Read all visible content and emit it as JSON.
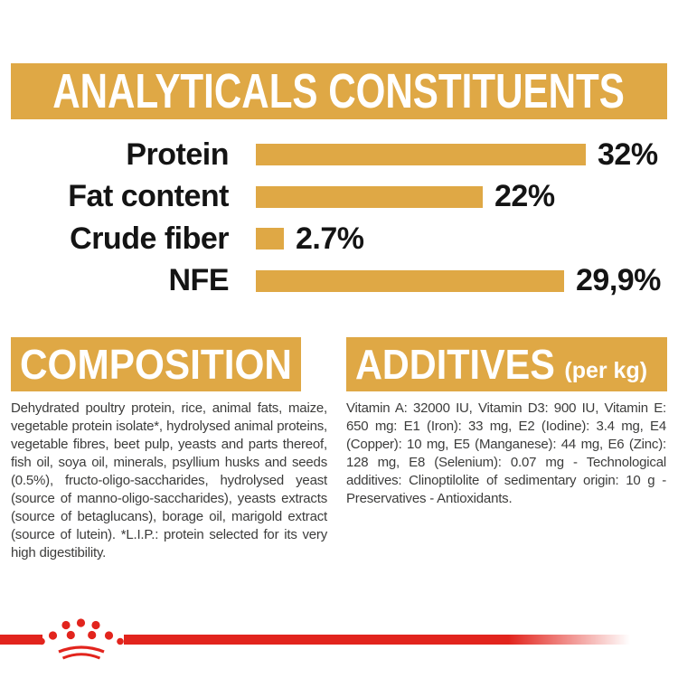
{
  "header": {
    "title": "ANALYTICALS CONSTITUENTS"
  },
  "chart_data": {
    "type": "bar",
    "orientation": "horizontal",
    "categories": [
      "Protein",
      "Fat content",
      "Crude fiber",
      "NFE"
    ],
    "values": [
      32,
      22,
      2.7,
      29.9
    ],
    "value_labels": [
      "32%",
      "22%",
      "2.7%",
      "29,9%"
    ],
    "unit": "%",
    "xlim": [
      0,
      35
    ],
    "bar_color": "#DFA845",
    "grid": false,
    "legend": false
  },
  "sections": {
    "composition": {
      "title": "COMPOSITION",
      "body": "Dehydrated poultry protein, rice, animal fats, maize, vegetable protein isolate*, hydrolysed animal proteins, vegetable fibres, beet pulp, yeasts and parts thereof, fish oil, soya oil, minerals, psyllium husks and seeds (0.5%), fructo-oligo-saccharides, hydrolysed yeast (source of manno-oligo-saccharides), yeasts extracts (source of betaglucans), borage oil, marigold extract (source of lutein). *L.I.P.: protein selected for its very high digestibility."
    },
    "additives": {
      "title": "ADDITIVES",
      "title_suffix": "(per kg)",
      "body": "Vitamin A: 32000 IU, Vitamin D3: 900 IU, Vitamin E: 650 mg: E1 (Iron): 33 mg, E2 (Iodine): 3.4 mg, E4 (Copper): 10 mg, E5 (Manganese): 44 mg, E6 (Zinc): 128 mg, E8 (Selenium): 0.07 mg - Technological additives: Clinoptilolite of sedimentary origin: 10 g - Preservatives - Antioxidants."
    }
  },
  "footer": {
    "logo": "royal-canin-crown"
  },
  "colors": {
    "gold": "#DFA845",
    "red": "#E2241D",
    "text": "#3C3C3B"
  }
}
